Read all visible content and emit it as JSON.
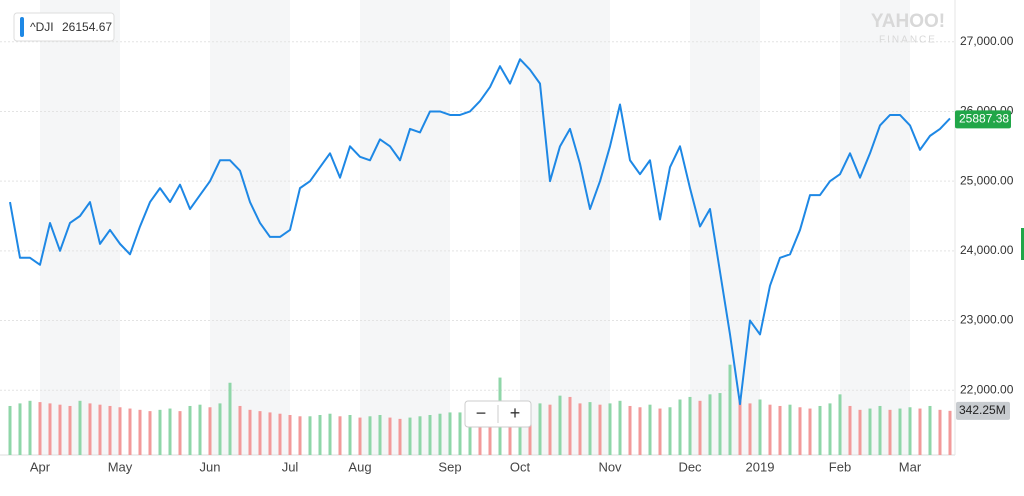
{
  "chart_data": {
    "type": "line",
    "logo": "YAHOO!",
    "logo_sub": "FINANCE",
    "ticker_value": 26154.67,
    "categories": [
      null,
      null,
      null,
      "Apr",
      null,
      null,
      null,
      null,
      null,
      null,
      null,
      "May",
      null,
      null,
      null,
      null,
      null,
      null,
      null,
      null,
      "Jun",
      null,
      null,
      null,
      null,
      null,
      null,
      null,
      "Jul",
      null,
      null,
      null,
      null,
      null,
      null,
      "Aug",
      null,
      null,
      null,
      null,
      null,
      null,
      null,
      null,
      "Sep",
      null,
      null,
      null,
      null,
      null,
      null,
      "Oct",
      null,
      null,
      null,
      null,
      null,
      null,
      null,
      null,
      "Nov",
      null,
      null,
      null,
      null,
      null,
      null,
      null,
      "Dec",
      null,
      null,
      null,
      null,
      null,
      null,
      "2019",
      null,
      null,
      null,
      null,
      null,
      null,
      null,
      "Feb",
      null,
      null,
      null,
      null,
      null,
      null,
      "Mar",
      null,
      null,
      null,
      null
    ],
    "series": [
      {
        "name": "^DJI",
        "color": "#1e88e5",
        "values": [
          24700,
          23900,
          23900,
          23800,
          24400,
          24000,
          24400,
          24500,
          24700,
          24100,
          24300,
          24100,
          23950,
          24350,
          24700,
          24900,
          24700,
          24950,
          24600,
          24800,
          25000,
          25300,
          25300,
          25150,
          24700,
          24400,
          24200,
          24200,
          24300,
          24900,
          25000,
          25200,
          25400,
          25050,
          25500,
          25350,
          25300,
          25600,
          25500,
          25300,
          25750,
          25700,
          26000,
          26000,
          25950,
          25950,
          26000,
          26150,
          26350,
          26650,
          26400,
          26750,
          26600,
          26400,
          25000,
          25500,
          25750,
          25250,
          24600,
          25000,
          25500,
          26100,
          25300,
          25100,
          25300,
          24450,
          25200,
          25500,
          24900,
          24350,
          24600,
          23700,
          22800,
          21800,
          23000,
          22800,
          23500,
          23900,
          23950,
          24300,
          24800,
          24800,
          25000,
          25100,
          25400,
          25050,
          25400,
          25800,
          25950,
          25950,
          25800,
          25450,
          25650,
          25750,
          25900
        ]
      }
    ],
    "volume": {
      "up_color": "#8fd6a8",
      "down_color": "#f29a9a",
      "ylim": [
        0,
        620
      ],
      "values": [
        380,
        400,
        420,
        410,
        400,
        390,
        380,
        420,
        400,
        390,
        380,
        370,
        360,
        350,
        340,
        350,
        360,
        340,
        380,
        390,
        370,
        400,
        560,
        380,
        350,
        340,
        330,
        320,
        310,
        300,
        300,
        310,
        320,
        300,
        310,
        290,
        300,
        310,
        290,
        280,
        290,
        300,
        310,
        320,
        330,
        330,
        340,
        330,
        320,
        600,
        340,
        420,
        380,
        400,
        390,
        460,
        450,
        400,
        410,
        390,
        400,
        420,
        380,
        370,
        390,
        360,
        370,
        430,
        450,
        420,
        470,
        480,
        700,
        420,
        400,
        430,
        390,
        380,
        390,
        370,
        360,
        380,
        400,
        470,
        380,
        350,
        360,
        380,
        350,
        360,
        370,
        360,
        380,
        350,
        342.25
      ],
      "last": {
        "value": 342.25,
        "label": "342.25M"
      }
    },
    "last_price": 25887.38,
    "last_price_color": "#21a648",
    "ylim": [
      21070,
      27600
    ],
    "yticks": [
      {
        "value": 22000,
        "label": "22,000.00"
      },
      {
        "value": 23000,
        "label": "23,000.00"
      },
      {
        "value": 24000,
        "label": "24,000.00"
      },
      {
        "value": 25000,
        "label": "25,000.00"
      },
      {
        "value": 26000,
        "label": "26,000.00"
      },
      {
        "value": 27000,
        "label": "27,000.00"
      }
    ],
    "grid": true,
    "zoom_out": "−",
    "zoom_in": "+"
  }
}
